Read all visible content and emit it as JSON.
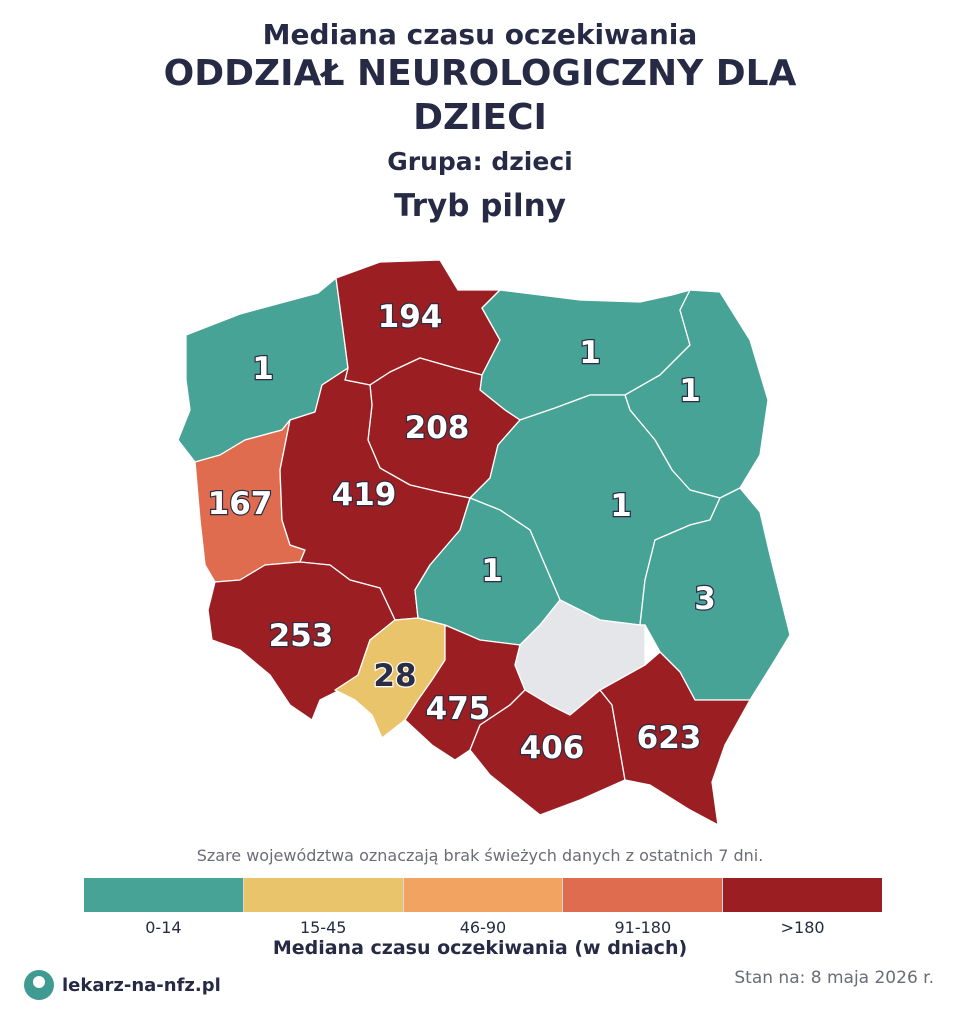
{
  "header": {
    "subtitle": "Mediana czasu oczekiwania",
    "title": "ODDZIAŁ NEUROLOGICZNY DLA DZIECI",
    "group": "Grupa: dzieci",
    "mode": "Tryb pilny"
  },
  "regions": [
    {
      "key": "pomorskie",
      "value": "194",
      "color": "#9b1e22"
    },
    {
      "key": "zachodniopomorskie",
      "value": "1",
      "color": "#47a396"
    },
    {
      "key": "warminsko-mazurskie",
      "value": "1",
      "color": "#47a396"
    },
    {
      "key": "podlaskie",
      "value": "1",
      "color": "#47a396"
    },
    {
      "key": "kujawsko-pomorskie",
      "value": "208",
      "color": "#9b1e22"
    },
    {
      "key": "lubuskie",
      "value": "167",
      "color": "#e06c4f"
    },
    {
      "key": "wielkopolskie",
      "value": "419",
      "color": "#9b1e22"
    },
    {
      "key": "mazowieckie",
      "value": "1",
      "color": "#47a396"
    },
    {
      "key": "lodzkie",
      "value": "1",
      "color": "#47a396"
    },
    {
      "key": "lubelskie",
      "value": "3",
      "color": "#47a396"
    },
    {
      "key": "dolnoslaskie",
      "value": "253",
      "color": "#9b1e22"
    },
    {
      "key": "opolskie",
      "value": "28",
      "color": "#e9c46a"
    },
    {
      "key": "slaskie",
      "value": "475",
      "color": "#9b1e22"
    },
    {
      "key": "malopolskie",
      "value": "406",
      "color": "#9b1e22"
    },
    {
      "key": "podkarpackie",
      "value": "623",
      "color": "#9b1e22"
    },
    {
      "key": "swietokrzyskie",
      "value": "",
      "color": "#e5e6ea"
    }
  ],
  "note": "Szare województwa oznaczają brak świeżych danych z ostatnich 7 dni.",
  "legend": {
    "title": "Mediana czasu oczekiwania (w dniach)",
    "items": [
      {
        "label": "0-14",
        "color": "#47a396"
      },
      {
        "label": "15-45",
        "color": "#e9c46a"
      },
      {
        "label": "46-90",
        "color": "#f2a361"
      },
      {
        "label": "91-180",
        "color": "#e06c4f"
      },
      {
        "label": ">180",
        "color": "#9b1e22"
      }
    ]
  },
  "footer": {
    "brand": "lekarz-na-nfz.pl",
    "date": "Stan na: 8 maja 2026 r."
  }
}
